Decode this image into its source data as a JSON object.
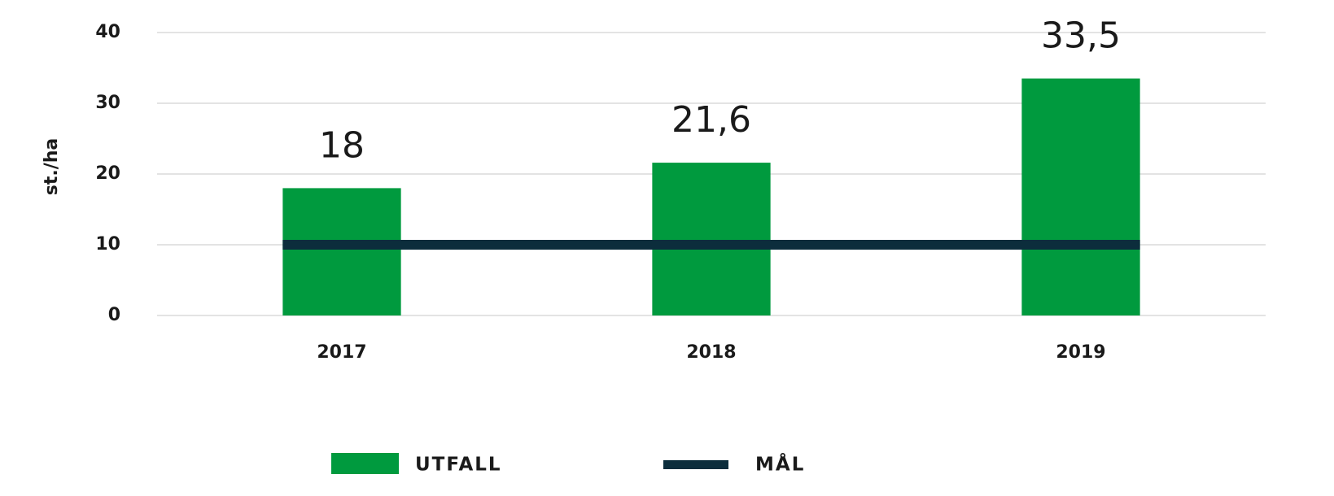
{
  "chart_data": {
    "type": "bar",
    "y_label": "st./ha",
    "categories": [
      "2017",
      "2018",
      "2019"
    ],
    "series": [
      {
        "name": "UTFALL",
        "type": "bar",
        "color": "#009a3e",
        "values": [
          18,
          21.6,
          33.5
        ],
        "value_labels": [
          "18",
          "21,6",
          "33,5"
        ]
      },
      {
        "name": "MÅL",
        "type": "line",
        "color": "#0c2d3c",
        "values": [
          10,
          10,
          10
        ]
      }
    ],
    "ylim": [
      0,
      40
    ],
    "yticks": [
      0,
      10,
      20,
      30,
      40
    ],
    "grid": true,
    "legend": "bottom"
  }
}
